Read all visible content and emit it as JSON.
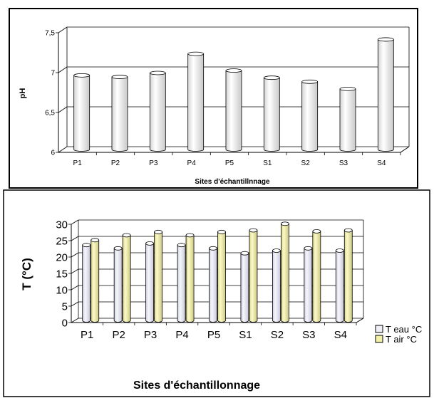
{
  "chart_data": [
    {
      "type": "bar",
      "ylabel": "pH",
      "xlabel": "Sites d'échantillnnage",
      "categories": [
        "P1",
        "P2",
        "P3",
        "P4",
        "P5",
        "S1",
        "S2",
        "S3",
        "S4"
      ],
      "values": [
        6.93,
        6.91,
        6.96,
        7.2,
        6.99,
        6.9,
        6.85,
        6.76,
        7.38
      ],
      "ylim": [
        6,
        7.5
      ],
      "yticks": [
        "6",
        "6,5",
        "7",
        "7,5"
      ],
      "grid": true,
      "bar_color": "#f2f2f2"
    },
    {
      "type": "bar",
      "ylabel": "T (°C)",
      "xlabel": "Sites d'échantillonnage",
      "categories": [
        "P1",
        "P2",
        "P3",
        "P4",
        "P5",
        "S1",
        "S2",
        "S3",
        "S4"
      ],
      "series": [
        {
          "name": "T eau °C",
          "values": [
            23,
            22,
            23.5,
            23,
            22,
            20.5,
            21.3,
            22,
            21.3
          ],
          "color": "#eeeef6"
        },
        {
          "name": "T air °C",
          "values": [
            24.5,
            26,
            27,
            26,
            27,
            27.5,
            29.5,
            27.2,
            27.5
          ],
          "color": "#f3f0a8"
        }
      ],
      "ylim": [
        0,
        30
      ],
      "yticks": [
        "0",
        "5",
        "10",
        "15",
        "20",
        "25",
        "30"
      ],
      "grid": true,
      "legend_position": "right"
    }
  ]
}
